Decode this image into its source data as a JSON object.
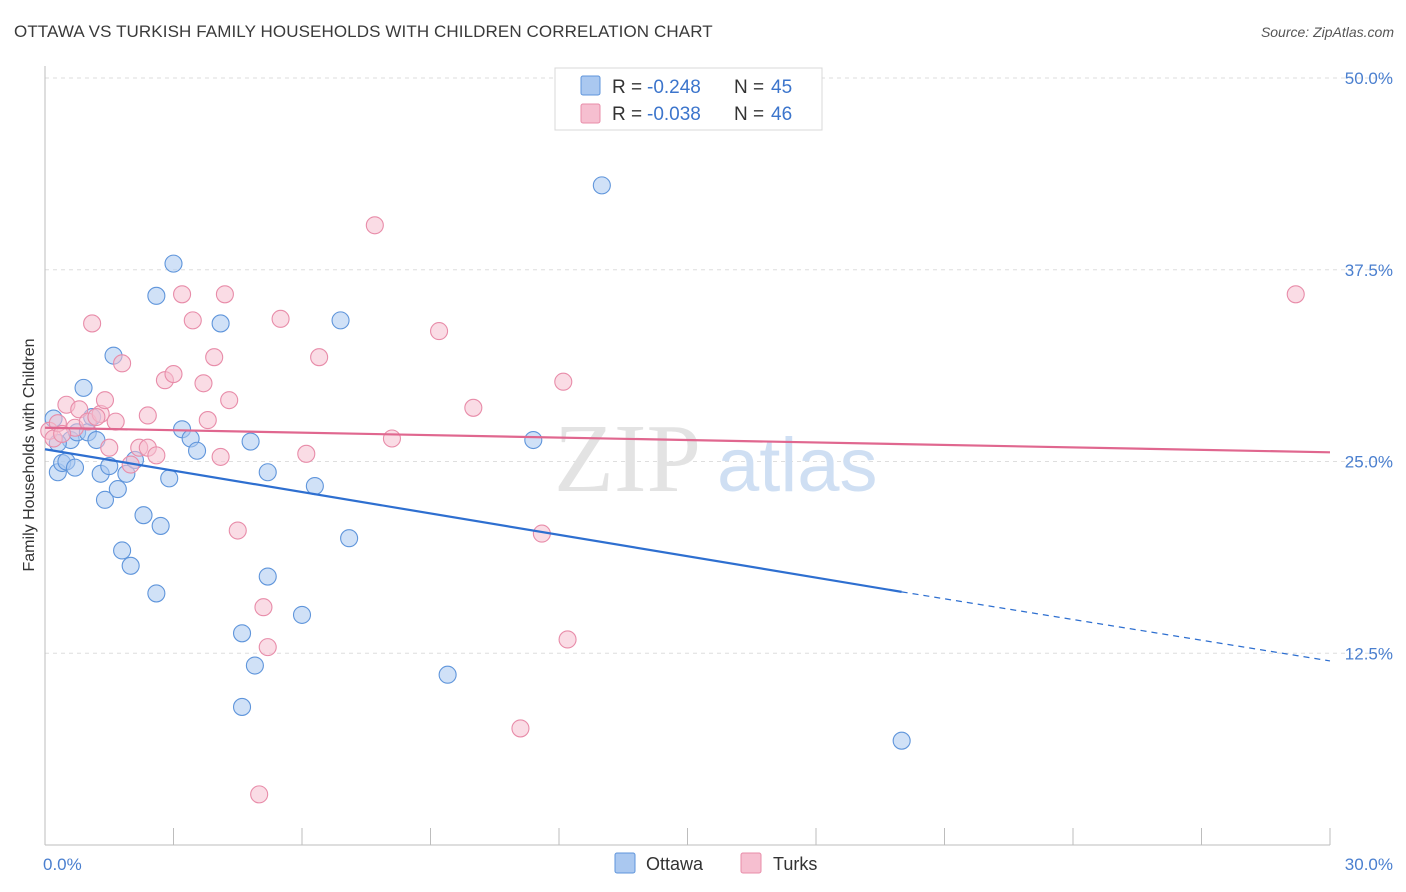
{
  "title": "OTTAWA VS TURKISH FAMILY HOUSEHOLDS WITH CHILDREN CORRELATION CHART",
  "source": "Source: ZipAtlas.com",
  "watermark": {
    "zip": "ZIP",
    "atlas": "atlas"
  },
  "legend": {
    "entries": [
      {
        "r_label": "R = ",
        "r_value": "-0.248",
        "n_label": "N = ",
        "n_value": "45"
      },
      {
        "r_label": "R = ",
        "r_value": "-0.038",
        "n_label": "N = ",
        "n_value": "46"
      }
    ]
  },
  "colors": {
    "ottawa_fill": "#aac8f0",
    "ottawa_stroke": "#5f95db",
    "ottawa_line": "#2e6fd0",
    "turks_fill": "#f6bfd0",
    "turks_stroke": "#e88ca9",
    "turks_line": "#e0678f",
    "grid": "#dedede",
    "axis_text": "#4a7fcf"
  },
  "chart_data": {
    "type": "scatter",
    "title": "OTTAWA VS TURKISH FAMILY HOUSEHOLDS WITH CHILDREN CORRELATION CHART",
    "xlabel": "",
    "ylabel": "Family Households with Children",
    "xlim": [
      0,
      30
    ],
    "ylim": [
      0,
      50
    ],
    "x_tick_labels": [
      "0.0%",
      "30.0%"
    ],
    "y_ticks": [
      12.5,
      25.0,
      37.5,
      50.0
    ],
    "y_tick_labels": [
      "12.5%",
      "25.0%",
      "37.5%",
      "50.0%"
    ],
    "series": [
      {
        "name": "Ottawa",
        "r": -0.248,
        "n": 45,
        "trend": {
          "x0": 0,
          "y0": 25.8,
          "x1": 20.0,
          "y1": 16.5,
          "dashed_to_x": 30,
          "dashed_to_y": 12.0
        },
        "points": [
          [
            0.2,
            27.8
          ],
          [
            0.3,
            24.3
          ],
          [
            0.4,
            24.9
          ],
          [
            0.5,
            25.0
          ],
          [
            0.6,
            26.4
          ],
          [
            0.7,
            24.6
          ],
          [
            0.75,
            26.9
          ],
          [
            0.9,
            29.8
          ],
          [
            1.0,
            26.9
          ],
          [
            1.1,
            27.9
          ],
          [
            1.2,
            26.4
          ],
          [
            1.3,
            24.2
          ],
          [
            1.4,
            22.5
          ],
          [
            1.5,
            24.7
          ],
          [
            1.6,
            31.9
          ],
          [
            1.7,
            23.2
          ],
          [
            1.8,
            19.2
          ],
          [
            1.9,
            24.2
          ],
          [
            2.0,
            18.2
          ],
          [
            2.1,
            25.1
          ],
          [
            2.3,
            21.5
          ],
          [
            2.6,
            16.4
          ],
          [
            2.6,
            35.8
          ],
          [
            2.7,
            20.8
          ],
          [
            2.9,
            23.9
          ],
          [
            3.0,
            37.9
          ],
          [
            3.2,
            27.1
          ],
          [
            3.4,
            26.5
          ],
          [
            3.55,
            25.7
          ],
          [
            4.1,
            34.0
          ],
          [
            4.6,
            13.8
          ],
          [
            4.6,
            9.0
          ],
          [
            4.8,
            26.3
          ],
          [
            4.9,
            11.7
          ],
          [
            5.2,
            17.5
          ],
          [
            5.2,
            24.3
          ],
          [
            6.0,
            15.0
          ],
          [
            6.3,
            23.4
          ],
          [
            6.9,
            34.2
          ],
          [
            7.1,
            20.0
          ],
          [
            9.4,
            11.1
          ],
          [
            11.4,
            26.4
          ],
          [
            13.0,
            43.0
          ],
          [
            20.0,
            6.8
          ],
          [
            0.3,
            26.2
          ]
        ]
      },
      {
        "name": "Turks",
        "r": -0.038,
        "n": 46,
        "trend": {
          "x0": 0,
          "y0": 27.2,
          "x1": 30,
          "y1": 25.6
        },
        "points": [
          [
            0.1,
            27.0
          ],
          [
            0.2,
            26.5
          ],
          [
            0.3,
            27.5
          ],
          [
            0.5,
            28.7
          ],
          [
            0.7,
            27.2
          ],
          [
            0.8,
            28.4
          ],
          [
            1.0,
            27.6
          ],
          [
            1.1,
            34.0
          ],
          [
            1.3,
            28.1
          ],
          [
            1.4,
            29.0
          ],
          [
            1.5,
            25.9
          ],
          [
            1.65,
            27.6
          ],
          [
            1.8,
            31.4
          ],
          [
            2.0,
            24.8
          ],
          [
            2.2,
            25.9
          ],
          [
            2.4,
            25.9
          ],
          [
            2.4,
            28.0
          ],
          [
            2.6,
            25.4
          ],
          [
            2.8,
            30.3
          ],
          [
            3.0,
            30.7
          ],
          [
            3.2,
            35.9
          ],
          [
            3.45,
            34.2
          ],
          [
            3.7,
            30.1
          ],
          [
            3.8,
            27.7
          ],
          [
            3.95,
            31.8
          ],
          [
            4.1,
            25.3
          ],
          [
            4.2,
            35.9
          ],
          [
            4.3,
            29.0
          ],
          [
            4.5,
            20.5
          ],
          [
            5.0,
            3.3
          ],
          [
            5.1,
            15.5
          ],
          [
            5.2,
            12.9
          ],
          [
            5.5,
            34.3
          ],
          [
            6.1,
            25.5
          ],
          [
            6.4,
            31.8
          ],
          [
            7.7,
            40.4
          ],
          [
            8.1,
            26.5
          ],
          [
            9.2,
            33.5
          ],
          [
            10.0,
            28.5
          ],
          [
            11.1,
            7.6
          ],
          [
            11.6,
            20.3
          ],
          [
            12.1,
            30.2
          ],
          [
            12.2,
            13.4
          ],
          [
            29.2,
            35.9
          ],
          [
            0.4,
            26.8
          ],
          [
            1.2,
            27.9
          ]
        ]
      }
    ]
  },
  "bottom_legend": [
    "Ottawa",
    "Turks"
  ]
}
